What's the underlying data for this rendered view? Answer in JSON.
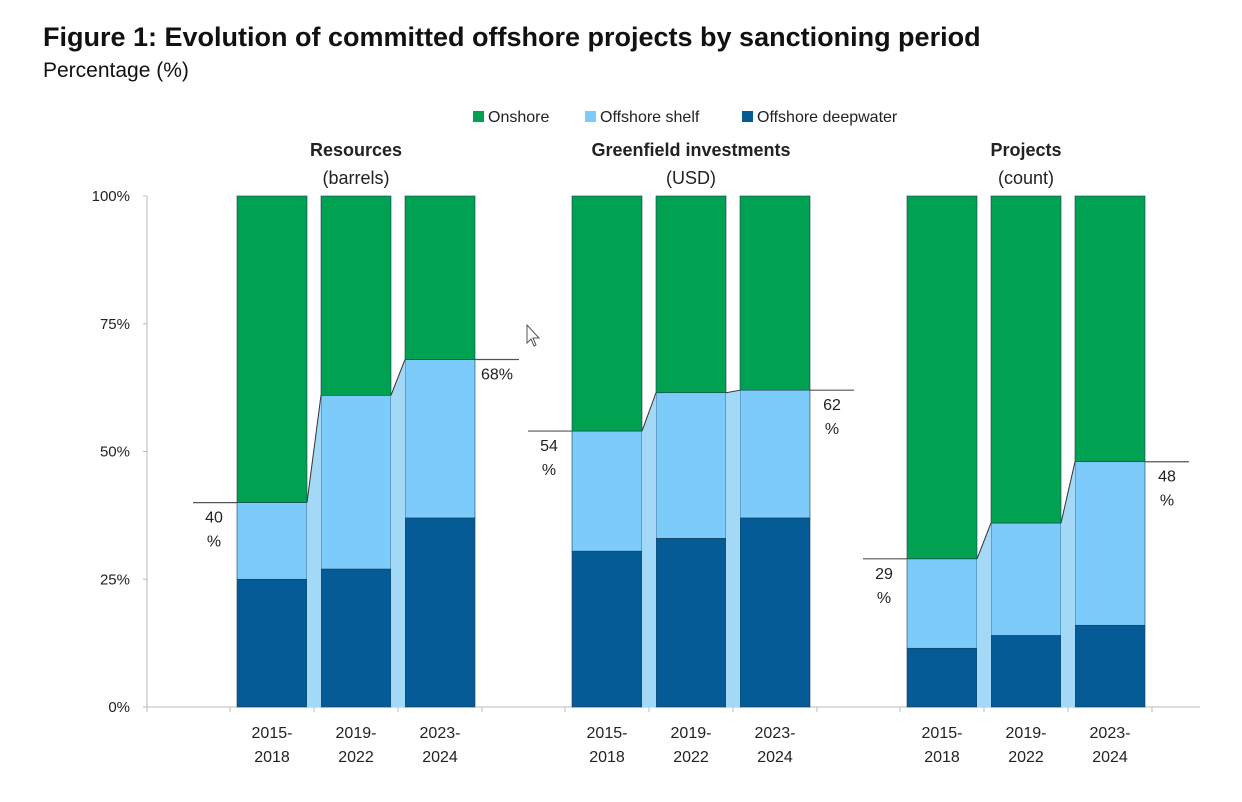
{
  "chart_data": {
    "type": "bar",
    "stacked": true,
    "title": "Figure 1: Evolution of committed offshore projects by sanctioning period",
    "subtitle": "Percentage (%)",
    "ylim": [
      0,
      100
    ],
    "yticks": [
      "0%",
      "25%",
      "50%",
      "75%",
      "100%"
    ],
    "ytick_values": [
      0,
      25,
      50,
      75,
      100
    ],
    "legend": {
      "placement": "top-center",
      "entries": [
        "Onshore",
        "Offshore shelf",
        "Offshore deepwater"
      ]
    },
    "colors": {
      "Onshore": "#00a151",
      "Offshore shelf": "#7ccbfb",
      "Offshore deepwater": "#045b95",
      "connector": "#a3d8f7"
    },
    "categories": [
      [
        "2015-",
        "2018"
      ],
      [
        "2019-",
        "2022"
      ],
      [
        "2023-",
        "2024"
      ]
    ],
    "panels": [
      {
        "title": "Resources",
        "unit": "(barrels)",
        "series": [
          {
            "name": "Offshore deepwater",
            "values": [
              25,
              27,
              37
            ]
          },
          {
            "name": "Offshore shelf",
            "values": [
              15,
              34,
              31
            ]
          },
          {
            "name": "Onshore",
            "values": [
              60,
              39,
              32
            ]
          }
        ],
        "annotations": [
          {
            "bar": 0,
            "side": "left",
            "lines": [
              "40",
              "%"
            ]
          },
          {
            "bar": 2,
            "side": "right",
            "lines": [
              "68%"
            ]
          }
        ]
      },
      {
        "title": "Greenfield investments",
        "unit": "(USD)",
        "series": [
          {
            "name": "Offshore deepwater",
            "values": [
              30.5,
              33,
              37
            ]
          },
          {
            "name": "Offshore shelf",
            "values": [
              23.5,
              28.5,
              25
            ]
          },
          {
            "name": "Onshore",
            "values": [
              46,
              38.5,
              38
            ]
          }
        ],
        "annotations": [
          {
            "bar": 0,
            "side": "left",
            "lines": [
              "54",
              "%"
            ]
          },
          {
            "bar": 2,
            "side": "right",
            "lines": [
              "62",
              "%"
            ]
          }
        ]
      },
      {
        "title": "Projects",
        "unit": "(count)",
        "series": [
          {
            "name": "Offshore deepwater",
            "values": [
              11.5,
              14,
              16
            ]
          },
          {
            "name": "Offshore shelf",
            "values": [
              17.5,
              22,
              32
            ]
          },
          {
            "name": "Onshore",
            "values": [
              71,
              64,
              52
            ]
          }
        ],
        "annotations": [
          {
            "bar": 0,
            "side": "left",
            "lines": [
              "29",
              "%"
            ]
          },
          {
            "bar": 2,
            "side": "right",
            "lines": [
              "48",
              "%"
            ]
          }
        ]
      }
    ]
  }
}
